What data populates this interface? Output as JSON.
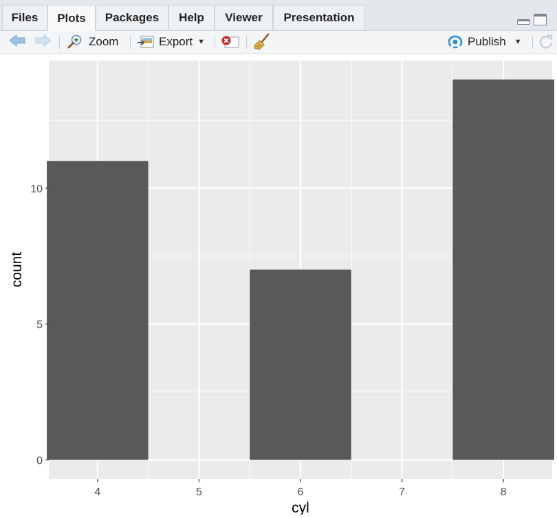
{
  "tabs": [
    {
      "label": "Files"
    },
    {
      "label": "Plots"
    },
    {
      "label": "Packages"
    },
    {
      "label": "Help"
    },
    {
      "label": "Viewer"
    },
    {
      "label": "Presentation"
    }
  ],
  "active_tab": "Plots",
  "toolbar": {
    "zoom_label": "Zoom",
    "export_label": "Export",
    "publish_label": "Publish"
  },
  "icons": {
    "back": "back-arrow-icon",
    "forward": "forward-arrow-icon",
    "zoom": "zoom-icon",
    "export": "export-icon",
    "remove": "remove-plot-icon",
    "clear": "broom-icon",
    "publish": "publish-icon",
    "refresh": "refresh-icon"
  },
  "colors": {
    "bar_fill": "#595959",
    "panel_bg": "#ebebeb",
    "grid": "#ffffff",
    "publish_accent": "#2a8fd3"
  },
  "chart_data": {
    "type": "bar",
    "x": [
      4,
      6,
      8
    ],
    "values": [
      11,
      7,
      14
    ],
    "xlabel": "cyl",
    "ylabel": "count",
    "xticks": [
      "4",
      "5",
      "6",
      "7",
      "8"
    ],
    "yticks": [
      "0",
      "5",
      "10"
    ],
    "xlim": [
      3.52,
      8.48
    ],
    "ylim": [
      -0.7,
      14.7
    ],
    "grid": true
  }
}
